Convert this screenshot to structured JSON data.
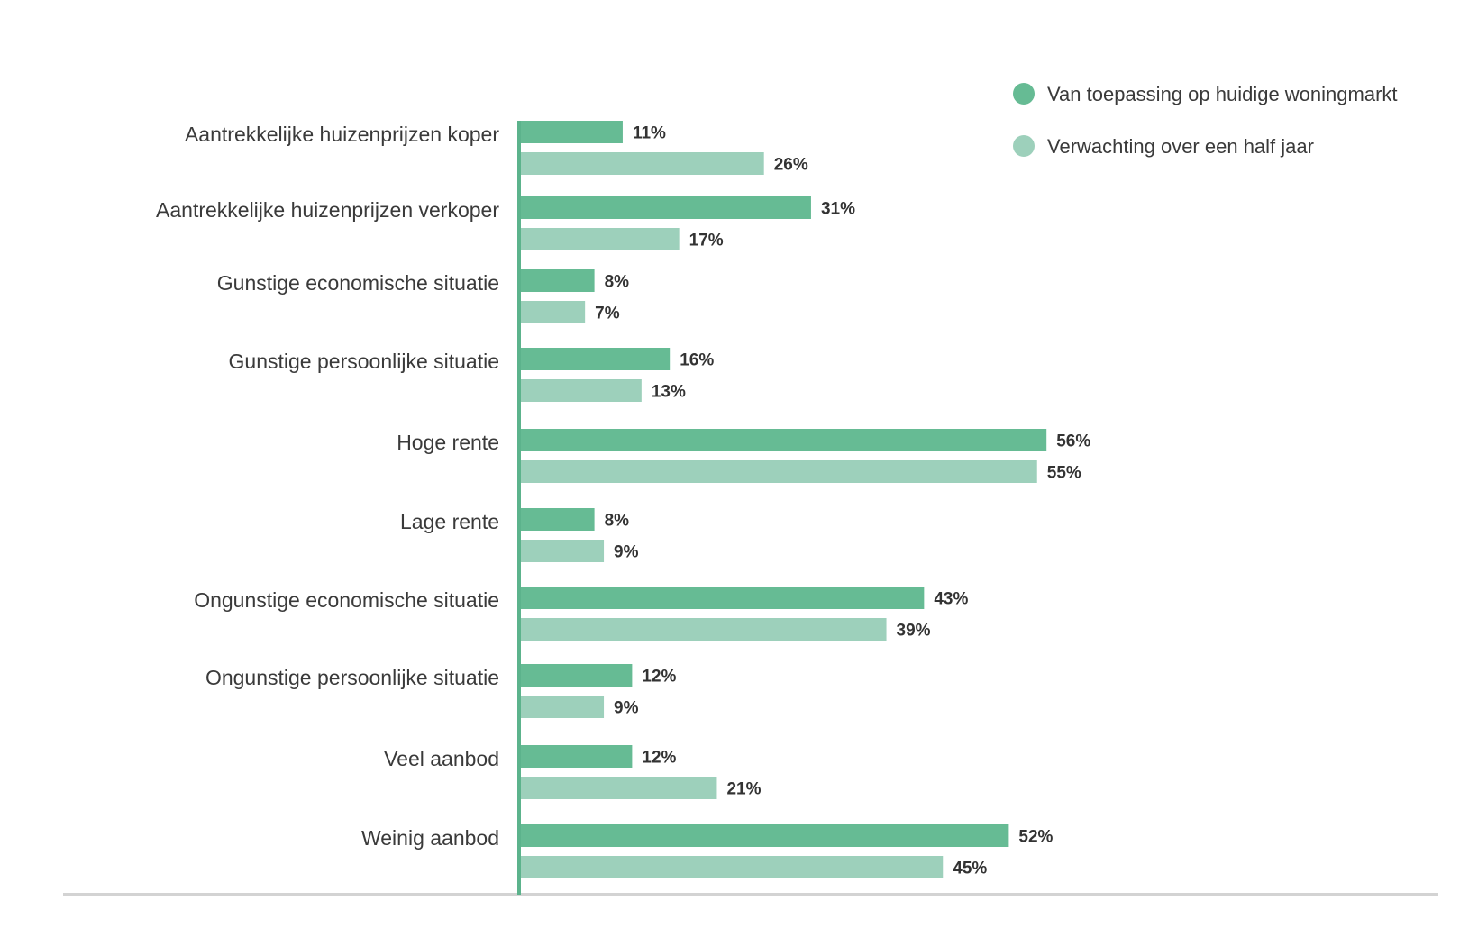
{
  "chart_data": {
    "type": "bar",
    "orientation": "horizontal",
    "categories": [
      "Aantrekkelijke huizenprijzen koper",
      "Aantrekkelijke huizenprijzen verkoper",
      "Gunstige economische situatie",
      "Gunstige persoonlijke situatie",
      "Hoge rente",
      "Lage rente",
      "Ongunstige economische situatie",
      "Ongunstige persoonlijke situatie",
      "Veel aanbod",
      "Weinig aanbod"
    ],
    "series": [
      {
        "name": "Van toepassing op huidige woningmarkt",
        "color": "#66bb94",
        "values": [
          11,
          31,
          8,
          16,
          56,
          8,
          43,
          12,
          12,
          52
        ],
        "labels": [
          "11%",
          "31%",
          "8%",
          "16%",
          "56%",
          "8%",
          "43%",
          "12%",
          "12%",
          "52%"
        ]
      },
      {
        "name": "Verwachting over een half jaar",
        "color": "#9dd0bb",
        "values": [
          26,
          17,
          7,
          13,
          55,
          9,
          39,
          9,
          21,
          45
        ],
        "labels": [
          "26%",
          "17%",
          "7%",
          "13%",
          "55%",
          "9%",
          "39%",
          "9%",
          "21%",
          "45%"
        ]
      }
    ],
    "value_unit": "%",
    "xlim": [
      0,
      100
    ],
    "grid": false,
    "legend_position": "top-right",
    "axis_color": "#5cb38c",
    "baseline_color": "#d3d3d3"
  }
}
